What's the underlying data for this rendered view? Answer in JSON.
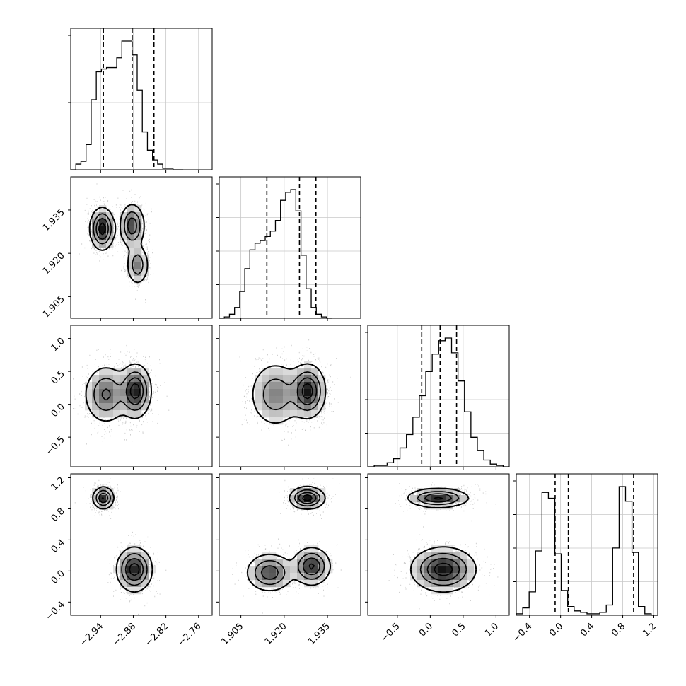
{
  "chart_data": {
    "type": "corner",
    "title": "",
    "params": [
      {
        "name": "p0",
        "label": "",
        "range": [
          -2.995,
          -2.735
        ],
        "ticks": [
          -2.94,
          -2.88,
          -2.82,
          -2.76
        ],
        "tick_labels": [
          "−2.94",
          "−2.88",
          "−2.82",
          "−2.76"
        ],
        "quantiles": [
          -2.935,
          -2.882,
          -2.842
        ]
      },
      {
        "name": "p1",
        "label": "",
        "range": [
          1.8975,
          1.9465
        ],
        "ticks": [
          1.905,
          1.92,
          1.935
        ],
        "tick_labels": [
          "1.905",
          "1.920",
          "1.935"
        ],
        "quantiles": [
          1.914,
          1.9253,
          1.931
        ]
      },
      {
        "name": "p2",
        "label": "",
        "range": [
          -0.95,
          1.2
        ],
        "ticks": [
          -0.5,
          0.0,
          0.5,
          1.0
        ],
        "tick_labels": [
          "−0.5",
          "0.0",
          "0.5",
          "1.0"
        ],
        "quantiles": [
          -0.13,
          0.15,
          0.4
        ]
      },
      {
        "name": "p3",
        "label": "",
        "range": [
          -0.57,
          1.25
        ],
        "ticks": [
          -0.4,
          0.0,
          0.4,
          0.8,
          1.2
        ],
        "tick_labels": [
          "−0.4",
          "0.0",
          "0.4",
          "0.8",
          "1.2"
        ],
        "quantiles": [
          -0.07,
          0.1,
          0.94
        ]
      }
    ],
    "histograms_1d": [
      {
        "param": "p0",
        "bin_edges_start": -2.995,
        "bin_width": 0.0094,
        "counts": [
          0,
          0.04,
          0.06,
          0.18,
          0.5,
          0.7,
          0.72,
          0.73,
          0.73,
          0.8,
          0.92,
          0.92,
          0.82,
          0.57,
          0.27,
          0.14,
          0.07,
          0.04,
          0.01,
          0.01,
          0,
          0
        ]
      },
      {
        "param": "p1",
        "bin_edges_start": 1.8975,
        "bin_width": 0.00177,
        "counts": [
          0,
          0.01,
          0.03,
          0.08,
          0.2,
          0.37,
          0.51,
          0.56,
          0.58,
          0.61,
          0.65,
          0.73,
          0.88,
          0.94,
          0.96,
          0.8,
          0.47,
          0.22,
          0.08,
          0.03,
          0.01,
          0
        ]
      },
      {
        "param": "p2",
        "bin_edges_start": -0.95,
        "bin_width": 0.098,
        "counts": [
          0,
          0.01,
          0.01,
          0.03,
          0.06,
          0.14,
          0.24,
          0.37,
          0.53,
          0.71,
          0.84,
          0.94,
          0.96,
          0.85,
          0.64,
          0.41,
          0.22,
          0.12,
          0.05,
          0.02,
          0.01,
          0
        ]
      },
      {
        "param": "p3",
        "bin_edges_start": -0.57,
        "bin_width": 0.0827,
        "counts": [
          0.01,
          0.05,
          0.16,
          0.44,
          0.84,
          0.8,
          0.42,
          0.17,
          0.06,
          0.03,
          0.02,
          0.01,
          0.01,
          0.02,
          0.07,
          0.46,
          0.88,
          0.78,
          0.43,
          0.06,
          0.01,
          0
        ]
      }
    ],
    "histograms_2d": [
      {
        "x": "p0",
        "y": "p1",
        "modes": [
          {
            "cx": -2.937,
            "cy": 1.9285,
            "sx": 0.011,
            "sy": 0.0036,
            "w": 1.0
          },
          {
            "cx": -2.882,
            "cy": 1.9295,
            "sx": 0.011,
            "sy": 0.0038,
            "w": 0.8
          },
          {
            "cx": -2.872,
            "cy": 1.916,
            "sx": 0.01,
            "sy": 0.0035,
            "w": 0.55
          }
        ]
      },
      {
        "x": "p0",
        "y": "p2",
        "modes": [
          {
            "cx": -2.93,
            "cy": 0.15,
            "sx": 0.02,
            "sy": 0.22,
            "w": 0.65
          },
          {
            "cx": -2.876,
            "cy": 0.2,
            "sx": 0.014,
            "sy": 0.2,
            "w": 1.0
          }
        ]
      },
      {
        "x": "p0",
        "y": "p3",
        "modes": [
          {
            "cx": -2.935,
            "cy": 0.94,
            "sx": 0.0095,
            "sy": 0.07,
            "w": 0.9
          },
          {
            "cx": -2.878,
            "cy": 0.02,
            "sx": 0.016,
            "sy": 0.14,
            "w": 1.0
          }
        ]
      },
      {
        "x": "p1",
        "y": "p2",
        "modes": [
          {
            "cx": 1.917,
            "cy": 0.15,
            "sx": 0.0045,
            "sy": 0.25,
            "w": 0.55
          },
          {
            "cx": 1.9282,
            "cy": 0.2,
            "sx": 0.003,
            "sy": 0.2,
            "w": 1.0
          }
        ]
      },
      {
        "x": "p1",
        "y": "p3",
        "modes": [
          {
            "cx": 1.928,
            "cy": 0.94,
            "sx": 0.003,
            "sy": 0.07,
            "w": 0.9
          },
          {
            "cx": 1.915,
            "cy": -0.02,
            "sx": 0.004,
            "sy": 0.12,
            "w": 0.7
          },
          {
            "cx": 1.9295,
            "cy": 0.06,
            "sx": 0.0032,
            "sy": 0.12,
            "w": 0.8
          }
        ]
      },
      {
        "x": "p2",
        "y": "p3",
        "modes": [
          {
            "cx": 0.12,
            "cy": 0.94,
            "sx": 0.23,
            "sy": 0.06,
            "w": 0.9
          },
          {
            "cx": 0.2,
            "cy": 0.02,
            "sx": 0.24,
            "sy": 0.14,
            "w": 1.0
          }
        ]
      }
    ],
    "quantile_lines": "dashed",
    "grid": true
  }
}
